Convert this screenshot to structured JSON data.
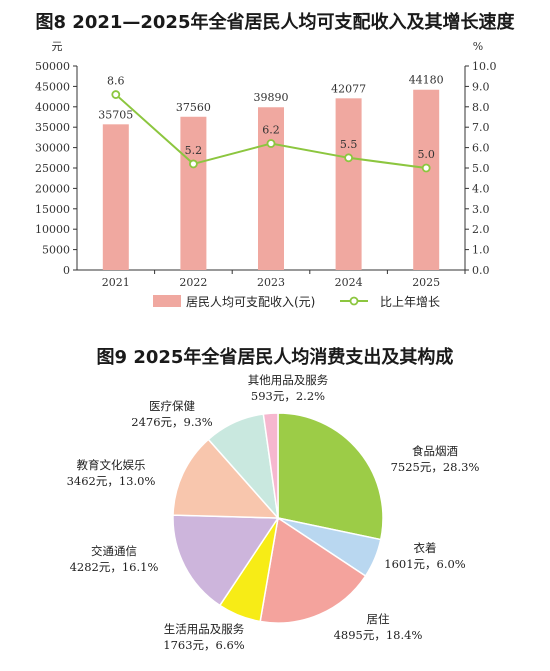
{
  "fig8": {
    "title": "图8 2021—2025年全省居民人均可支配收入及其增长速度"
  },
  "fig9": {
    "title": "图9 2025年全省居民人均消费支出及其构成"
  },
  "chart_data": [
    {
      "type": "bar",
      "title": "图8 2021—2025年全省居民人均可支配收入及其增长速度",
      "categories": [
        "2021",
        "2022",
        "2023",
        "2024",
        "2025"
      ],
      "y_left_unit": "元",
      "y_right_unit": "%",
      "ylim": [
        0,
        50000
      ],
      "y_ticks": [
        "0",
        "5000",
        "10000",
        "15000",
        "20000",
        "25000",
        "30000",
        "35000",
        "40000",
        "45000",
        "50000"
      ],
      "y2lim": [
        0,
        10
      ],
      "y2_ticks": [
        "0.0",
        "1.0",
        "2.0",
        "3.0",
        "4.0",
        "5.0",
        "6.0",
        "7.0",
        "8.0",
        "9.0",
        "10.0"
      ],
      "series": [
        {
          "name": "居民人均可支配收入(元)",
          "type": "bar",
          "color": "#f0a8a0",
          "values": [
            35705,
            37560,
            39890,
            42077,
            44180
          ],
          "labels": [
            "35705",
            "37560",
            "39890",
            "42077",
            "44180"
          ]
        },
        {
          "name": "比上年增长",
          "type": "line",
          "axis": "right",
          "color": "#8cc63f",
          "values": [
            8.6,
            5.2,
            6.2,
            5.5,
            5.0
          ],
          "labels": [
            "8.6",
            "5.2",
            "6.2",
            "5.5",
            "5.0"
          ]
        }
      ],
      "grid": false,
      "legend": "bottom"
    },
    {
      "type": "pie",
      "title": "图9 2025年全省居民人均消费支出及其构成",
      "slices": [
        {
          "name": "食品烟酒",
          "value": 7525,
          "percent": 28.3,
          "detail": "7525元，28.3%",
          "color": "#9ccc47"
        },
        {
          "name": "衣着",
          "value": 1601,
          "percent": 6.0,
          "detail": "1601元，6.0%",
          "color": "#b9d7f0"
        },
        {
          "name": "居住",
          "value": 4895,
          "percent": 18.4,
          "detail": "4895元，18.4%",
          "color": "#f4a39d"
        },
        {
          "name": "生活用品及服务",
          "value": 1763,
          "percent": 6.6,
          "detail": "1763元，6.6%",
          "color": "#f7ec16"
        },
        {
          "name": "交通通信",
          "value": 4282,
          "percent": 16.1,
          "detail": "4282元，16.1%",
          "color": "#cdb5dc"
        },
        {
          "name": "教育文化娱乐",
          "value": 3462,
          "percent": 13.0,
          "detail": "3462元，13.0%",
          "color": "#f8c6ad"
        },
        {
          "name": "医疗保健",
          "value": 2476,
          "percent": 9.3,
          "detail": "2476元，9.3%",
          "color": "#c9e8df"
        },
        {
          "name": "其他用品及服务",
          "value": 593,
          "percent": 2.2,
          "detail": "593元，2.2%",
          "color": "#f6b7cf"
        }
      ]
    }
  ]
}
